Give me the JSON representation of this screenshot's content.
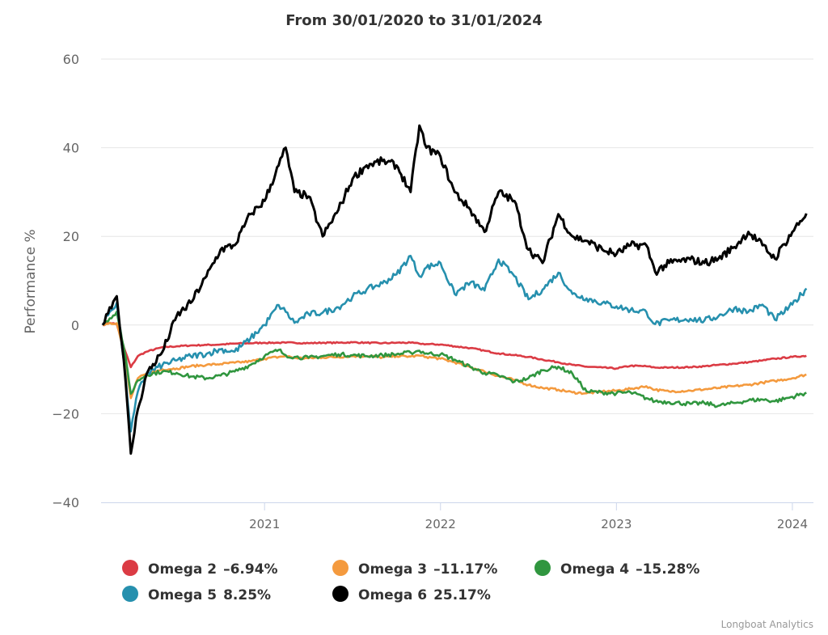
{
  "chart_data": {
    "type": "line",
    "title": "From 30/01/2020 to 31/01/2024",
    "xlabel": "",
    "ylabel": "Performance %",
    "xlim": [
      2020.08,
      2024.08
    ],
    "ylim": [
      -40,
      60
    ],
    "yticks": [
      60,
      40,
      20,
      0,
      -20,
      -40
    ],
    "yticklabels": [
      "60",
      "40",
      "20",
      "0",
      "−20",
      "−40"
    ],
    "xticks": [
      2021,
      2022,
      2023,
      2024
    ],
    "xticklabels": [
      "2021",
      "2022",
      "2023",
      "2024"
    ],
    "grid": true,
    "legend_position": "bottom-left",
    "credit": "Longboat Analytics",
    "x": [
      2020.08,
      2020.12,
      2020.16,
      2020.2,
      2020.24,
      2020.28,
      2020.33,
      2020.42,
      2020.5,
      2020.58,
      2020.67,
      2020.75,
      2020.83,
      2020.92,
      2021.0,
      2021.08,
      2021.12,
      2021.17,
      2021.25,
      2021.33,
      2021.42,
      2021.5,
      2021.58,
      2021.67,
      2021.75,
      2021.83,
      2021.88,
      2021.92,
      2022.0,
      2022.08,
      2022.17,
      2022.25,
      2022.33,
      2022.42,
      2022.5,
      2022.58,
      2022.67,
      2022.75,
      2022.83,
      2022.92,
      2023.0,
      2023.08,
      2023.17,
      2023.22,
      2023.3,
      2023.42,
      2023.5,
      2023.58,
      2023.67,
      2023.75,
      2023.83,
      2023.9,
      2024.0,
      2024.08
    ],
    "series": [
      {
        "name": "Omega 2",
        "final_label": "-6.94%",
        "color": "#db3b44",
        "values": [
          0,
          0.5,
          0.2,
          -5,
          -9.5,
          -7,
          -6,
          -5,
          -4.8,
          -4.6,
          -4.5,
          -4.4,
          -4.2,
          -4.1,
          -4.0,
          -4.0,
          -4.0,
          -4.0,
          -4.1,
          -4.0,
          -4.0,
          -3.9,
          -4.0,
          -4.1,
          -4.0,
          -4.0,
          -4.2,
          -4.3,
          -4.4,
          -4.8,
          -5.2,
          -5.8,
          -6.4,
          -6.8,
          -7.2,
          -7.8,
          -8.4,
          -9.0,
          -9.4,
          -9.6,
          -9.8,
          -9.2,
          -9.3,
          -9.6,
          -9.6,
          -9.5,
          -9.3,
          -9.0,
          -8.7,
          -8.4,
          -8.0,
          -7.6,
          -7.2,
          -6.94
        ]
      },
      {
        "name": "Omega 3",
        "final_label": "-11.17%",
        "color": "#f49a3e",
        "values": [
          0,
          0.5,
          0.4,
          -6,
          -16.5,
          -12,
          -11,
          -10,
          -9.8,
          -9.3,
          -9,
          -8.8,
          -8.5,
          -8.2,
          -7.6,
          -7.2,
          -7.0,
          -7.4,
          -7.5,
          -7.3,
          -7.2,
          -7.0,
          -7.0,
          -7.3,
          -7.0,
          -7.1,
          -6.9,
          -7.2,
          -7.6,
          -8.4,
          -9.5,
          -10.5,
          -11.5,
          -12.4,
          -13.5,
          -14.2,
          -14.6,
          -15.2,
          -15.4,
          -15.0,
          -14.8,
          -14.4,
          -13.8,
          -14.6,
          -15.0,
          -14.8,
          -14.5,
          -14.2,
          -13.8,
          -13.5,
          -13.0,
          -12.6,
          -12.0,
          -11.17
        ]
      },
      {
        "name": "Omega 4",
        "final_label": "-15.28%",
        "color": "#30963f",
        "values": [
          0,
          1.5,
          3,
          -5,
          -15.5,
          -12.5,
          -11.2,
          -10.5,
          -10.8,
          -11.6,
          -12.0,
          -11.4,
          -10.5,
          -9.0,
          -7.0,
          -5.6,
          -6.8,
          -7.2,
          -7.4,
          -7.0,
          -6.6,
          -6.8,
          -7.0,
          -6.8,
          -6.6,
          -6.2,
          -5.8,
          -6.4,
          -6.6,
          -7.8,
          -9.5,
          -10.8,
          -11.4,
          -12.8,
          -12.0,
          -10.2,
          -9.4,
          -11.0,
          -15.0,
          -15.2,
          -15.4,
          -15.2,
          -16.5,
          -17.2,
          -17.4,
          -17.8,
          -17.6,
          -18.2,
          -17.6,
          -17.0,
          -16.8,
          -17.2,
          -16.2,
          -15.28
        ]
      },
      {
        "name": "Omega 5",
        "final_label": "8.25%",
        "color": "#2690ae",
        "values": [
          0,
          3,
          5,
          -8,
          -24,
          -15,
          -11,
          -9,
          -8,
          -7,
          -6.5,
          -5.5,
          -6,
          -3,
          0,
          4.5,
          3,
          0.5,
          2.5,
          2.8,
          4.0,
          6.4,
          8.0,
          9.4,
          11.4,
          15.6,
          11.0,
          13.0,
          14.0,
          7.0,
          9.6,
          7.8,
          14.8,
          11.0,
          5.8,
          8.0,
          11.8,
          7.0,
          6.0,
          5.0,
          4.2,
          3.4,
          3.0,
          0.2,
          1.0,
          1.4,
          1.0,
          2.0,
          3.8,
          3.0,
          4.6,
          1.2,
          4.6,
          8.25
        ]
      },
      {
        "name": "Omega 6",
        "final_label": "25.17%",
        "color": "#000000",
        "values": [
          0,
          4,
          6.5,
          -8,
          -29,
          -19,
          -11,
          -6,
          2,
          5,
          11,
          17,
          18,
          25,
          28,
          36,
          40,
          30,
          29,
          20,
          26,
          33,
          36,
          37,
          36,
          30,
          45,
          40,
          38,
          30,
          26,
          21,
          30,
          28,
          17,
          14,
          25,
          20,
          19,
          17,
          16,
          18,
          18,
          12,
          14,
          14.8,
          14.0,
          15.0,
          17.6,
          21.0,
          18.0,
          15.0,
          21.0,
          25.17
        ]
      }
    ]
  }
}
